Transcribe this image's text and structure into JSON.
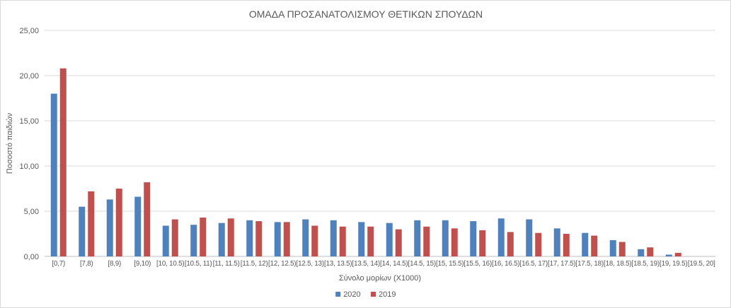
{
  "chart_data": {
    "type": "bar",
    "title": "ΟΜΑΔΑ ΠΡΟΣΑΝΑΤΟΛΙΣΜΟΥ ΘΕΤΙΚΩΝ ΣΠΟΥΔΩΝ",
    "xlabel": "Σύνολο μορίων (Χ1000)",
    "ylabel": "Ποσοστό παιδιών",
    "ylim": [
      0,
      25
    ],
    "y_tick_step": 5,
    "y_tick_labels": [
      "0,00",
      "5,00",
      "10,00",
      "15,00",
      "20,00",
      "25,00"
    ],
    "grid": true,
    "legend_position": "bottom",
    "categories": [
      "[0,7)",
      "[7,8)",
      "[8,9)",
      "[9,10)",
      "[10, 10.5)",
      "[10.5, 11)",
      "[11, 11.5)",
      "[11.5, 12)",
      "[12, 12.5)",
      "[12.5, 13)",
      "[13, 13.5)",
      "[13.5, 14)",
      "[14, 14.5)",
      "[14.5, 15)",
      "[15, 15.5)",
      "[15.5, 16)",
      "[16, 16.5)",
      "[16.5, 17)",
      "[17, 17.5)",
      "[17.5, 18)",
      "[18, 18.5)",
      "[18.5, 19)",
      "[19, 19.5)",
      "[19.5, 20]"
    ],
    "series": [
      {
        "name": "2020",
        "color": "#4F81BD",
        "values": [
          18.0,
          5.5,
          6.3,
          6.6,
          3.4,
          3.5,
          3.7,
          4.0,
          3.8,
          4.1,
          4.0,
          3.8,
          3.7,
          4.0,
          4.0,
          3.9,
          4.2,
          4.1,
          3.1,
          2.6,
          1.8,
          0.8,
          0.2,
          0
        ]
      },
      {
        "name": "2019",
        "color": "#C0504D",
        "values": [
          20.8,
          7.2,
          7.5,
          8.2,
          4.1,
          4.3,
          4.2,
          3.9,
          3.8,
          3.4,
          3.3,
          3.3,
          3.0,
          3.3,
          3.1,
          2.9,
          2.7,
          2.6,
          2.5,
          2.3,
          1.6,
          1.0,
          0.4,
          0
        ]
      }
    ],
    "colors": {
      "grid": "#D9D9D9",
      "axis_line": "#BFBFBF",
      "text": "#595959",
      "background": "#FFFFFF",
      "border": "#D9D9D9"
    }
  }
}
